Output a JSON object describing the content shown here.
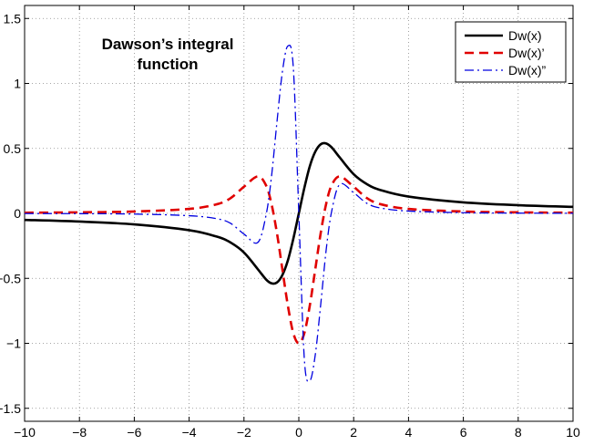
{
  "chart_data": {
    "type": "line",
    "title": "Dawson’s integral function",
    "title_lines": [
      "Dawson’s integral",
      "function"
    ],
    "xlabel": "",
    "ylabel": "",
    "xlim": [
      -10,
      10
    ],
    "ylim": [
      -1.6,
      1.6
    ],
    "xticks": [
      -10,
      -8,
      -6,
      -4,
      -2,
      0,
      2,
      4,
      6,
      8,
      10
    ],
    "xtick_labels": [
      "−10",
      "−8",
      "−6",
      "−4",
      "−2",
      "0",
      "2",
      "4",
      "6",
      "8",
      "10"
    ],
    "yticks": [
      -1.5,
      -1,
      -0.5,
      0,
      0.5,
      1,
      1.5
    ],
    "ytick_labels": [
      "−1.5",
      "−1",
      "−0.5",
      "0",
      "0.5",
      "1",
      "1.5"
    ],
    "grid": true,
    "legend_position": "top-right",
    "x": [
      -10,
      -8,
      -6,
      -4,
      -3,
      -2.5,
      -2,
      -1.5,
      -1.2,
      -1,
      -0.8,
      -0.6,
      -0.4,
      -0.2,
      0,
      0.2,
      0.4,
      0.6,
      0.8,
      1,
      1.2,
      1.5,
      2,
      2.5,
      3,
      4,
      6,
      8,
      10
    ],
    "series": [
      {
        "name": "Dw(x)",
        "color": "#000000",
        "dash": "solid",
        "values": [
          -0.0503,
          -0.063,
          -0.0845,
          -0.1293,
          -0.1783,
          -0.2231,
          -0.3013,
          -0.4282,
          -0.5073,
          -0.5381,
          -0.5321,
          -0.4748,
          -0.3627,
          -0.1948,
          0,
          0.1948,
          0.3627,
          0.4748,
          0.5321,
          0.5381,
          0.5073,
          0.4282,
          0.3013,
          0.2231,
          0.1783,
          0.1293,
          0.0845,
          0.063,
          0.0503
        ]
      },
      {
        "name": "Dw(x)’",
        "color": "#e00000",
        "dash": "dashed",
        "values": [
          0.0051,
          0.008,
          0.0144,
          0.0344,
          0.0697,
          0.1155,
          0.2052,
          0.2845,
          0.2175,
          0.0762,
          -0.1486,
          -0.4302,
          -0.7098,
          -0.9221,
          -1.0,
          -0.9221,
          -0.7098,
          -0.4302,
          -0.1486,
          0.0762,
          0.2175,
          0.2845,
          0.2052,
          0.1155,
          0.0697,
          0.0344,
          0.0144,
          0.008,
          0.0051
        ]
      },
      {
        "name": "Dw(x)”",
        "color": "#0000e0",
        "dash": "dashdot",
        "values": [
          -0.0011,
          -0.0021,
          -0.0051,
          -0.0178,
          -0.0405,
          -0.0752,
          -0.159,
          -0.225,
          -0.0186,
          0.2762,
          0.6974,
          1.0884,
          1.2878,
          1.1185,
          0,
          -1.1185,
          -1.2878,
          -1.0884,
          -0.6974,
          -0.2762,
          0.0186,
          0.225,
          0.159,
          0.0752,
          0.0405,
          0.0178,
          0.0051,
          0.0021,
          0.0011
        ]
      }
    ]
  }
}
